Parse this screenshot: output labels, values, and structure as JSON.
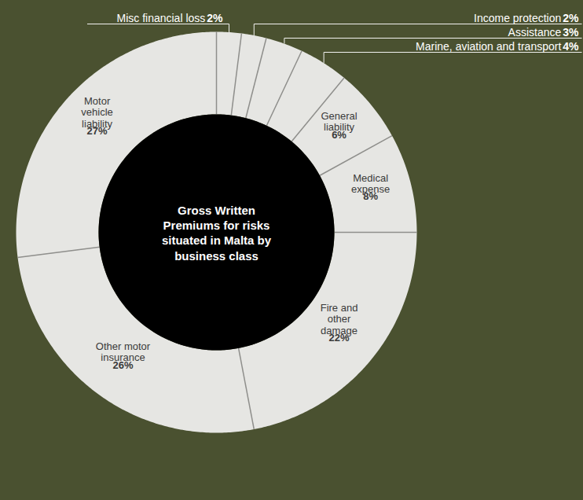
{
  "chart_data": {
    "type": "donut",
    "title": "Gross Written Premiums for risks situated in Malta by business class",
    "categories": [
      "Misc financial loss",
      "Income protection",
      "Assistance",
      "Marine, aviation and transport",
      "General liability",
      "Medical expense",
      "Fire and other damage",
      "Other motor insurance",
      "Motor vehicle liability"
    ],
    "values": [
      2,
      2,
      3,
      4,
      6,
      8,
      22,
      26,
      27
    ],
    "value_labels": [
      "2%",
      "2%",
      "3%",
      "4%",
      "6%",
      "8%",
      "22%",
      "26%",
      "27%"
    ],
    "color": "#e6e6e3",
    "data_labels": true
  }
}
